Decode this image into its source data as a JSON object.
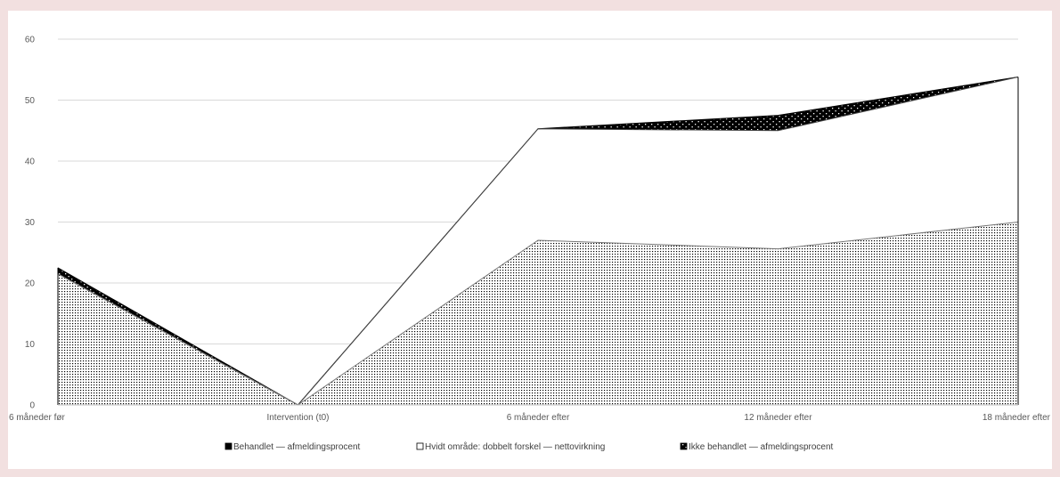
{
  "chart_data": {
    "type": "area",
    "title": "",
    "xlabel": "",
    "ylabel": "",
    "ylim": [
      0,
      60
    ],
    "yticks": [
      0,
      10,
      20,
      30,
      40,
      50,
      60
    ],
    "categories": [
      "6 måneder før",
      "Intervention (t0)",
      "6 måneder efter",
      "12 måneder efter",
      "18 måneder efter"
    ],
    "grid": true,
    "legend_position": "bottom",
    "series": [
      {
        "name": "Behandlet — afmeldingsprocent",
        "values": [
          22.5,
          0,
          45.3,
          47.5,
          53.8
        ],
        "fill": "#000000",
        "pattern": "dots-white-on-black"
      },
      {
        "name": "Hvidt område: dobbelt forskel — nettovirkning",
        "values": [
          21.5,
          0,
          45.3,
          45.0,
          53.8
        ],
        "fill": "#ffffff",
        "pattern": "none"
      },
      {
        "name": "Ikke behandlet — afmeldingsprocent",
        "values": [
          21.5,
          0,
          27.0,
          25.6,
          30.0
        ],
        "fill": "#ffffff",
        "pattern": "dense-dots-black-on-white"
      }
    ]
  }
}
